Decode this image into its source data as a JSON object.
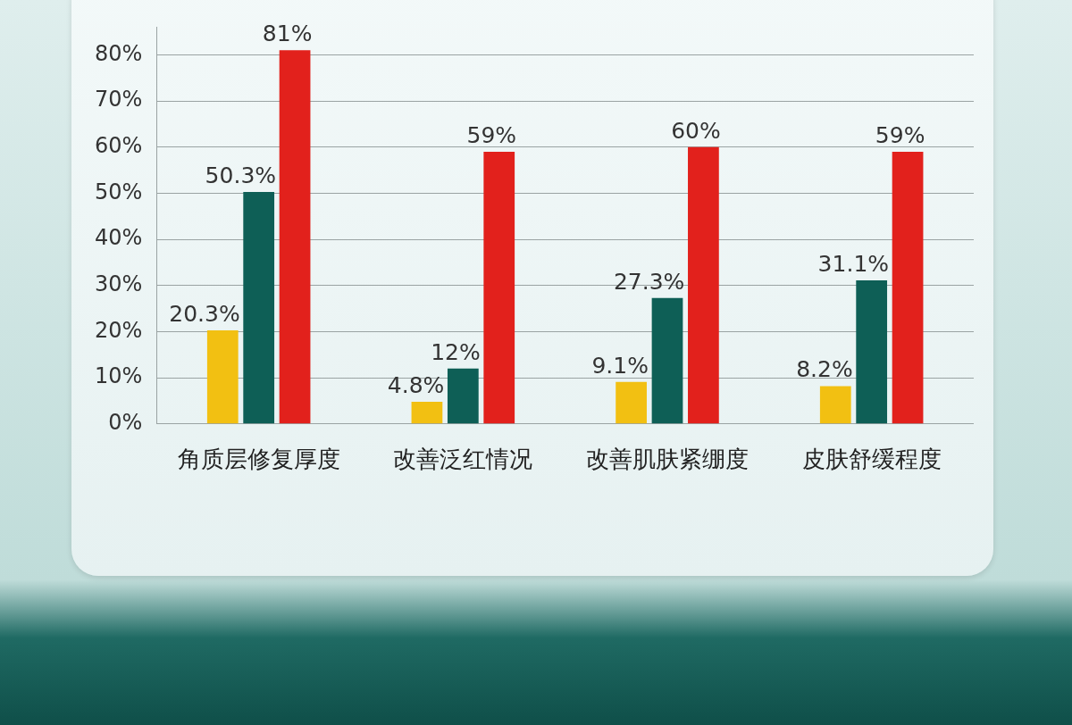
{
  "chart_data": {
    "type": "bar",
    "categories": [
      "角质层修复厚度",
      "改善泛红情况",
      "改善肌肤紧绷度",
      "皮肤舒缓程度"
    ],
    "series": [
      {
        "color": "#f2c012",
        "values": [
          20.3,
          4.8,
          9.1,
          8.2
        ],
        "value_labels": [
          "20.3%",
          "4.8%",
          "9.1%",
          "8.2%"
        ]
      },
      {
        "color": "#0e5f56",
        "values": [
          50.3,
          12,
          27.3,
          31.1
        ],
        "value_labels": [
          "50.3%",
          "12%",
          "27.3%",
          "31.1%"
        ]
      },
      {
        "color": "#e2211c",
        "values": [
          81,
          59,
          60,
          59
        ],
        "value_labels": [
          "81%",
          "59%",
          "60%",
          "59%"
        ]
      }
    ],
    "ylim": [
      0,
      86
    ],
    "yticks": [
      {
        "value": 0,
        "label": "0%"
      },
      {
        "value": 10,
        "label": "10%"
      },
      {
        "value": 20,
        "label": "20%"
      },
      {
        "value": 30,
        "label": "30%"
      },
      {
        "value": 40,
        "label": "40%"
      },
      {
        "value": 50,
        "label": "50%"
      },
      {
        "value": 60,
        "label": "60%"
      },
      {
        "value": 70,
        "label": "70%"
      },
      {
        "value": 80,
        "label": "80%"
      }
    ],
    "grid": "y",
    "legend": false
  }
}
